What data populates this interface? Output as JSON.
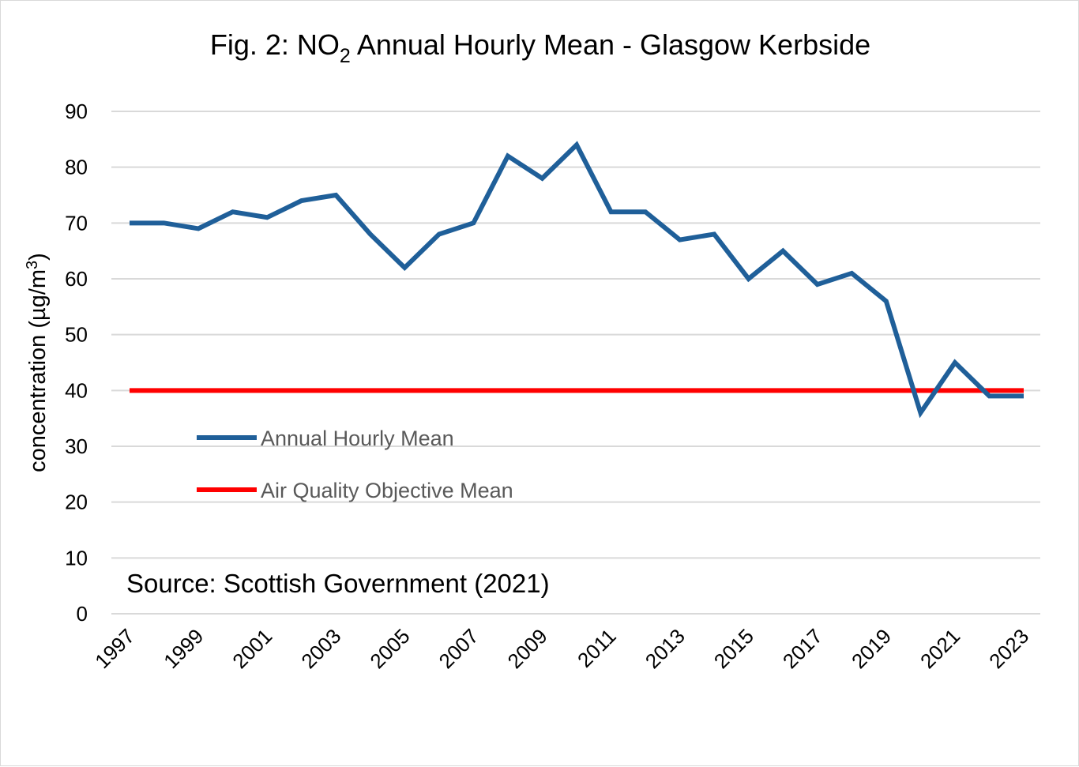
{
  "chart_data": {
    "type": "line",
    "title": {
      "prefix": "Fig. 2: NO",
      "subscript": "2",
      "suffix": " Annual Hourly Mean - Glasgow Kerbside"
    },
    "ylabel": {
      "main": "concentration (µg/m",
      "superscript": "3",
      "close": ")"
    },
    "xlabel": "",
    "ylim": [
      0,
      90
    ],
    "y_ticks": [
      "0",
      "10",
      "20",
      "30",
      "40",
      "50",
      "60",
      "70",
      "80",
      "90"
    ],
    "x": [
      1997,
      1998,
      1999,
      2000,
      2001,
      2002,
      2003,
      2004,
      2005,
      2006,
      2007,
      2008,
      2009,
      2010,
      2011,
      2012,
      2013,
      2014,
      2015,
      2016,
      2017,
      2018,
      2019,
      2020,
      2021,
      2022,
      2023
    ],
    "x_tick_labels": [
      "1997",
      "1999",
      "2001",
      "2003",
      "2005",
      "2007",
      "2009",
      "2011",
      "2013",
      "2015",
      "2017",
      "2019",
      "2021",
      "2023"
    ],
    "grid": true,
    "legend_position": "center-left",
    "series": [
      {
        "name": "Annual Hourly Mean",
        "color": "#1f5f99",
        "values": [
          70,
          70,
          69,
          72,
          71,
          74,
          75,
          68,
          62,
          68,
          70,
          82,
          78,
          84,
          72,
          72,
          67,
          68,
          60,
          65,
          59,
          61,
          56,
          36,
          45,
          39,
          39
        ]
      },
      {
        "name": "Air Quality Objective Mean",
        "color": "#ff0000",
        "values": [
          40,
          40,
          40,
          40,
          40,
          40,
          40,
          40,
          40,
          40,
          40,
          40,
          40,
          40,
          40,
          40,
          40,
          40,
          40,
          40,
          40,
          40,
          40,
          40,
          40,
          40,
          40
        ]
      }
    ],
    "annotation": "Source: Scottish Government (2021)"
  }
}
